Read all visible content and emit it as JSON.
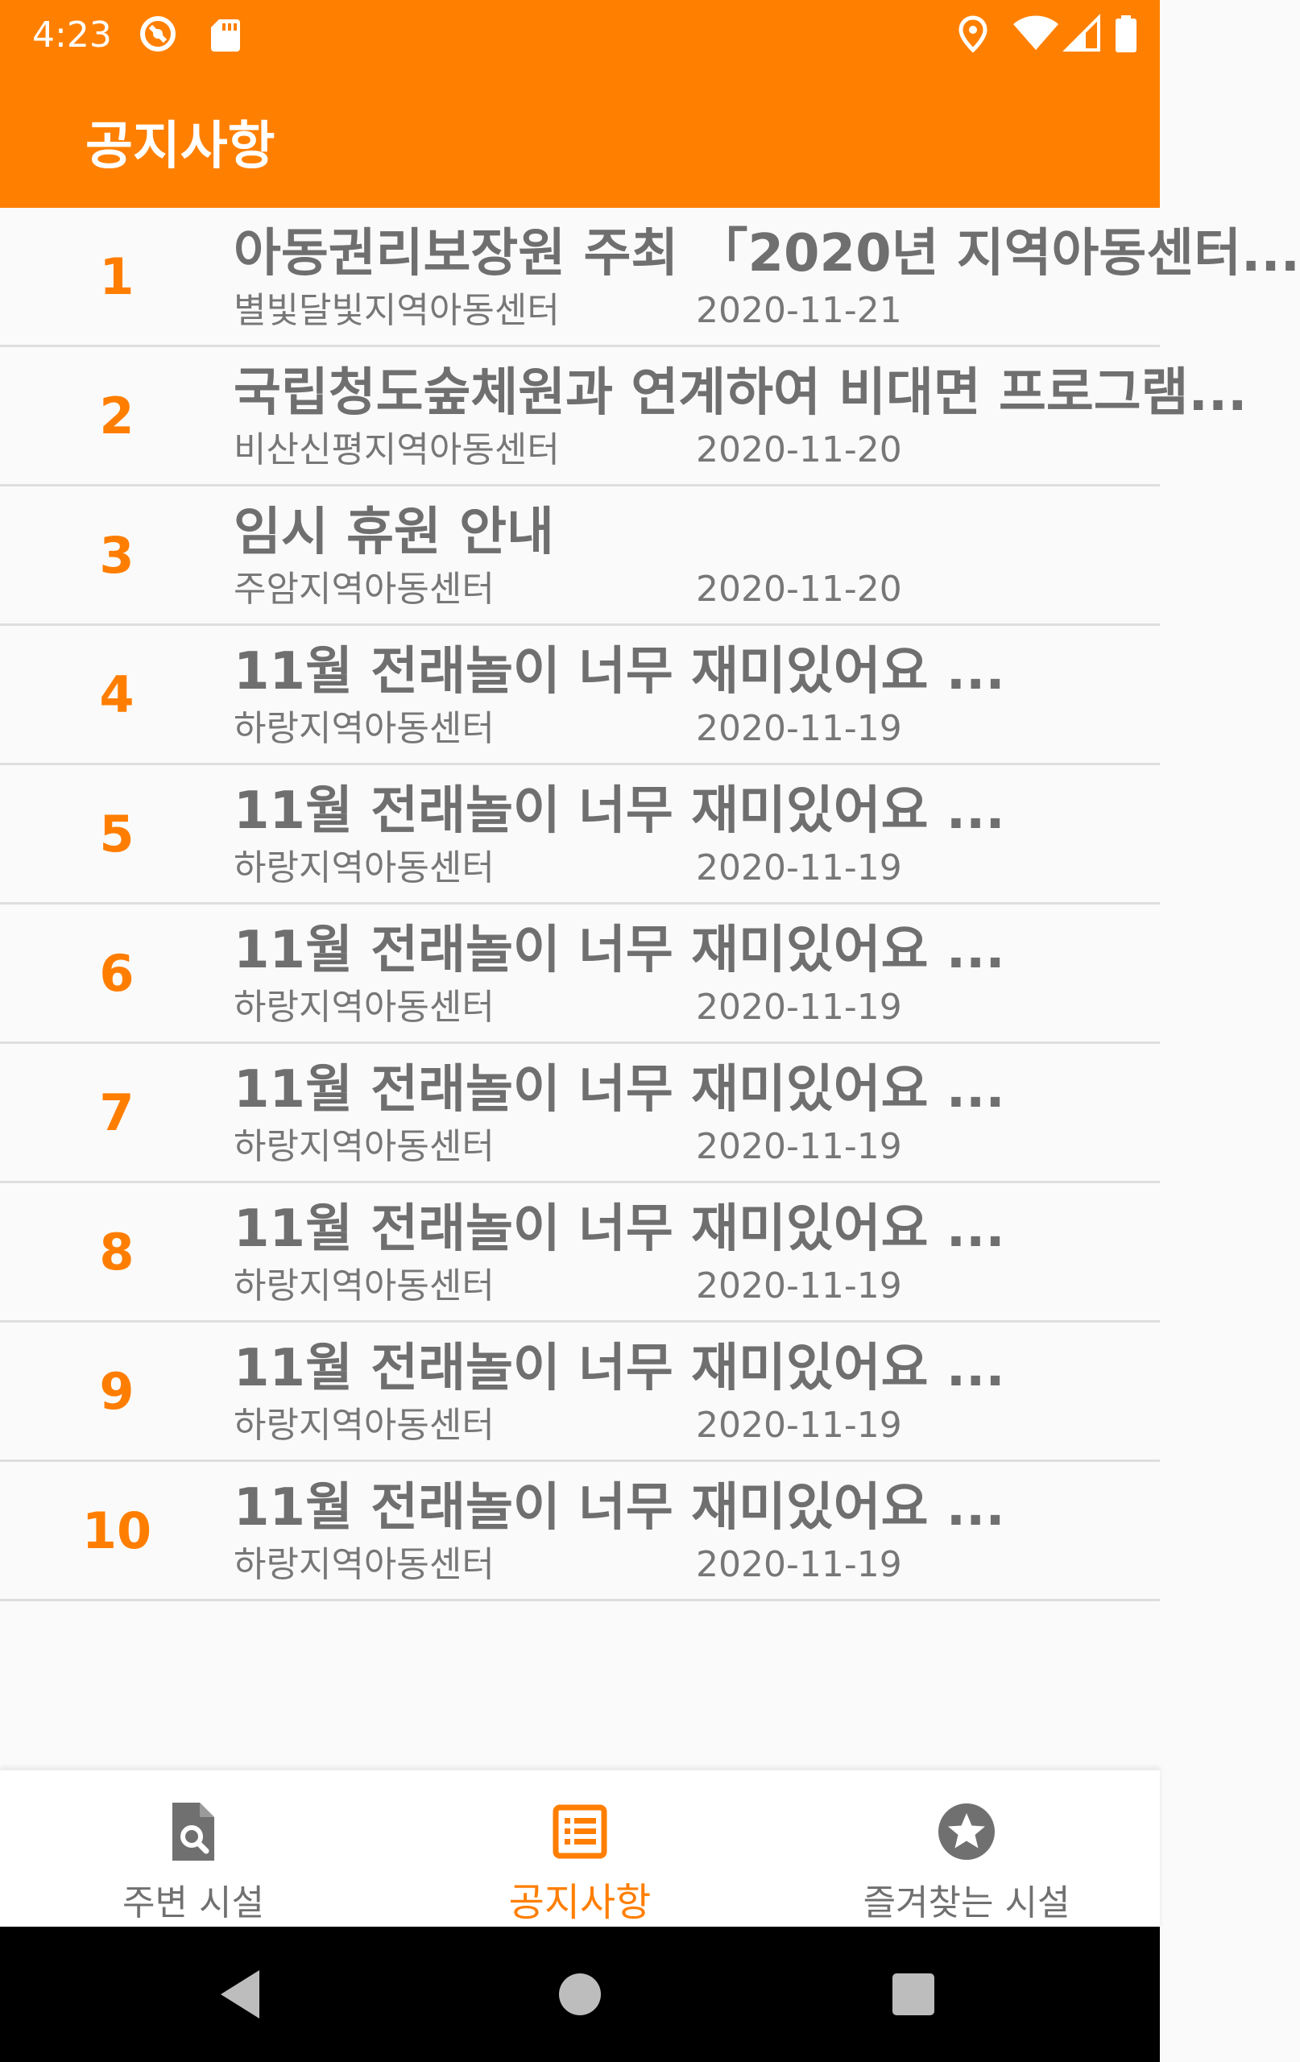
{
  "status_bar": {
    "time": "4:23",
    "icons": [
      "vpn-key-icon",
      "sd-card-icon",
      "location-icon",
      "wifi-icon",
      "signal-icon",
      "battery-icon"
    ]
  },
  "app_bar": {
    "title": "공지사항",
    "color": "#ff8000"
  },
  "notices": [
    {
      "num": "1",
      "title": "아동권리보장원 주최 「2020년 지역아동센터...",
      "org": "별빛달빛지역아동센터",
      "date": "2020-11-21"
    },
    {
      "num": "2",
      "title": "국립청도숲체원과 연계하여 비대면 프로그램...",
      "org": "비산신평지역아동센터",
      "date": "2020-11-20"
    },
    {
      "num": "3",
      "title": "임시 휴원 안내",
      "org": "주암지역아동센터",
      "date": "2020-11-20"
    },
    {
      "num": "4",
      "title": "11월 전래놀이 너무 재미있어요 ...",
      "org": "하랑지역아동센터",
      "date": "2020-11-19"
    },
    {
      "num": "5",
      "title": "11월 전래놀이 너무 재미있어요 ...",
      "org": "하랑지역아동센터",
      "date": "2020-11-19"
    },
    {
      "num": "6",
      "title": "11월 전래놀이 너무 재미있어요 ...",
      "org": "하랑지역아동센터",
      "date": "2020-11-19"
    },
    {
      "num": "7",
      "title": "11월 전래놀이 너무 재미있어요 ...",
      "org": "하랑지역아동센터",
      "date": "2020-11-19"
    },
    {
      "num": "8",
      "title": "11월 전래놀이 너무 재미있어요 ...",
      "org": "하랑지역아동센터",
      "date": "2020-11-19"
    },
    {
      "num": "9",
      "title": "11월 전래놀이 너무 재미있어요 ...",
      "org": "하랑지역아동센터",
      "date": "2020-11-19"
    },
    {
      "num": "10",
      "title": "11월 전래놀이 너무 재미있어요 ...",
      "org": "하랑지역아동센터",
      "date": "2020-11-19"
    }
  ],
  "bottom_nav": {
    "items": [
      {
        "label": "주변 시설",
        "icon": "document-search-icon",
        "active": false
      },
      {
        "label": "공지사항",
        "icon": "list-icon",
        "active": true
      },
      {
        "label": "즐겨찾는 시설",
        "icon": "star-circle-icon",
        "active": false
      }
    ],
    "active_color": "#ff7e00",
    "inactive_color": "#707070"
  },
  "system_nav": [
    "back-icon",
    "home-icon",
    "recents-icon"
  ]
}
